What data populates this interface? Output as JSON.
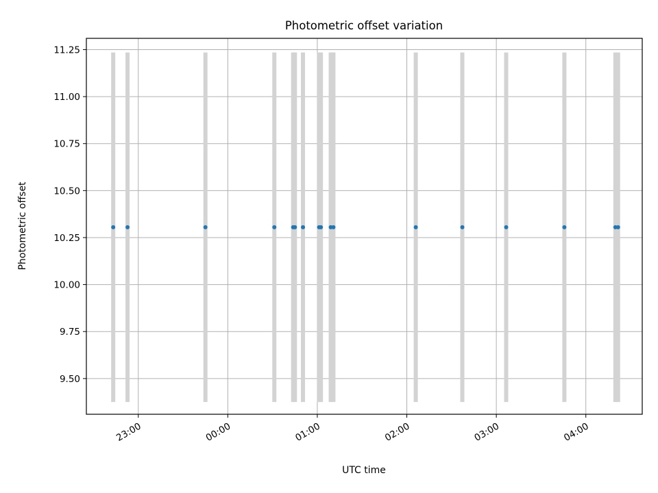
{
  "chart_data": {
    "type": "scatter",
    "title": "Photometric offset variation",
    "xlabel": "UTC time",
    "ylabel": "Photometric offset",
    "xlim_hours": [
      -1.58,
      4.63
    ],
    "ylim": [
      9.31,
      11.31
    ],
    "grid": true,
    "x_ticks": [
      {
        "hour": -1,
        "label": "23:00"
      },
      {
        "hour": 0,
        "label": "00:00"
      },
      {
        "hour": 1,
        "label": "01:00"
      },
      {
        "hour": 2,
        "label": "02:00"
      },
      {
        "hour": 3,
        "label": "03:00"
      },
      {
        "hour": 4,
        "label": "04:00"
      }
    ],
    "y_ticks": [
      {
        "value": 9.5,
        "label": "9.50"
      },
      {
        "value": 9.75,
        "label": "9.75"
      },
      {
        "value": 10.0,
        "label": "10.00"
      },
      {
        "value": 10.25,
        "label": "10.25"
      },
      {
        "value": 10.5,
        "label": "10.50"
      },
      {
        "value": 10.75,
        "label": "10.75"
      },
      {
        "value": 11.0,
        "label": "11.00"
      },
      {
        "value": 11.25,
        "label": "11.25"
      }
    ],
    "series": [
      {
        "marker_color": "#1f77b4",
        "errorbar_color": "#d3d3d3",
        "points": [
          {
            "x_hours": -1.28,
            "y": 10.305,
            "yerr": 0.93
          },
          {
            "x_hours": -1.12,
            "y": 10.305,
            "yerr": 0.93
          },
          {
            "x_hours": -0.25,
            "y": 10.305,
            "yerr": 0.93
          },
          {
            "x_hours": 0.52,
            "y": 10.305,
            "yerr": 0.93
          },
          {
            "x_hours": 0.73,
            "y": 10.305,
            "yerr": 0.93
          },
          {
            "x_hours": 0.75,
            "y": 10.305,
            "yerr": 0.93
          },
          {
            "x_hours": 0.84,
            "y": 10.305,
            "yerr": 0.93
          },
          {
            "x_hours": 1.02,
            "y": 10.305,
            "yerr": 0.93
          },
          {
            "x_hours": 1.04,
            "y": 10.305,
            "yerr": 0.93
          },
          {
            "x_hours": 1.15,
            "y": 10.305,
            "yerr": 0.93
          },
          {
            "x_hours": 1.18,
            "y": 10.305,
            "yerr": 0.93
          },
          {
            "x_hours": 2.1,
            "y": 10.305,
            "yerr": 0.93
          },
          {
            "x_hours": 2.62,
            "y": 10.305,
            "yerr": 0.93
          },
          {
            "x_hours": 3.11,
            "y": 10.305,
            "yerr": 0.93
          },
          {
            "x_hours": 3.76,
            "y": 10.305,
            "yerr": 0.93
          },
          {
            "x_hours": 4.33,
            "y": 10.305,
            "yerr": 0.93
          },
          {
            "x_hours": 4.36,
            "y": 10.305,
            "yerr": 0.93
          }
        ]
      }
    ]
  }
}
